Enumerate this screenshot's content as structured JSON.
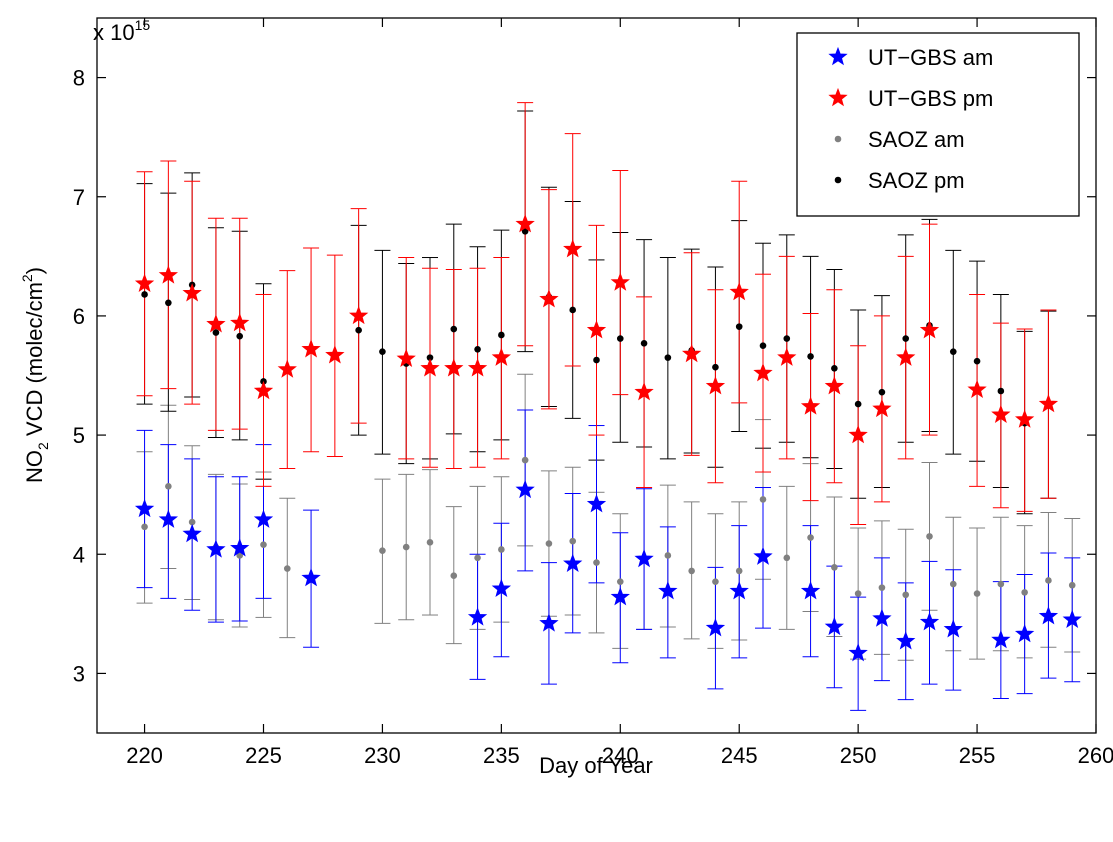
{
  "chart_data": {
    "type": "scatter",
    "xlabel": "Day of Year",
    "ylabel_main": "NO",
    "ylabel_sub": "2",
    "ylabel_rest": " VCD (molec/cm",
    "ylabel_sup": "2",
    "ylabel_end": ")",
    "exponent_prefix": "x 10",
    "exponent_power": "15",
    "scale": 1000000000000000.0,
    "xlim": [
      218,
      260
    ],
    "ylim": [
      2.5,
      8.5
    ],
    "xticks": [
      220,
      225,
      230,
      235,
      240,
      245,
      250,
      255,
      260
    ],
    "yticks": [
      3,
      4,
      5,
      6,
      7,
      8
    ],
    "grid": false,
    "legend_position": "top-right",
    "series": [
      {
        "name": "UT−GBS am",
        "marker": "star",
        "color": "#0000ff",
        "points": [
          {
            "x": 220,
            "y": 4.38,
            "lo": 3.72,
            "hi": 5.04
          },
          {
            "x": 221,
            "y": 4.29,
            "lo": 3.63,
            "hi": 4.92
          },
          {
            "x": 222,
            "y": 4.17,
            "lo": 3.53,
            "hi": 4.8
          },
          {
            "x": 223,
            "y": 4.04,
            "lo": 3.43,
            "hi": 4.65
          },
          {
            "x": 224,
            "y": 4.05,
            "lo": 3.44,
            "hi": 4.65
          },
          {
            "x": 225,
            "y": 4.29,
            "lo": 3.63,
            "hi": 4.92
          },
          {
            "x": 227,
            "y": 3.8,
            "lo": 3.22,
            "hi": 4.37
          },
          {
            "x": 234,
            "y": 3.47,
            "lo": 2.95,
            "hi": 4.0
          },
          {
            "x": 235,
            "y": 3.71,
            "lo": 3.14,
            "hi": 4.26
          },
          {
            "x": 236,
            "y": 4.54,
            "lo": 3.86,
            "hi": 5.21
          },
          {
            "x": 237,
            "y": 3.42,
            "lo": 2.91,
            "hi": 3.93
          },
          {
            "x": 238,
            "y": 3.92,
            "lo": 3.34,
            "hi": 4.51
          },
          {
            "x": 239,
            "y": 4.42,
            "lo": 3.76,
            "hi": 5.08
          },
          {
            "x": 240,
            "y": 3.64,
            "lo": 3.09,
            "hi": 4.18
          },
          {
            "x": 241,
            "y": 3.96,
            "lo": 3.37,
            "hi": 4.55
          },
          {
            "x": 242,
            "y": 3.69,
            "lo": 3.13,
            "hi": 4.23
          },
          {
            "x": 244,
            "y": 3.38,
            "lo": 2.87,
            "hi": 3.89
          },
          {
            "x": 245,
            "y": 3.69,
            "lo": 3.13,
            "hi": 4.24
          },
          {
            "x": 246,
            "y": 3.98,
            "lo": 3.38,
            "hi": 4.56
          },
          {
            "x": 248,
            "y": 3.69,
            "lo": 3.14,
            "hi": 4.24
          },
          {
            "x": 249,
            "y": 3.39,
            "lo": 2.88,
            "hi": 3.9
          },
          {
            "x": 250,
            "y": 3.17,
            "lo": 2.69,
            "hi": 3.64
          },
          {
            "x": 251,
            "y": 3.46,
            "lo": 2.94,
            "hi": 3.97
          },
          {
            "x": 252,
            "y": 3.27,
            "lo": 2.78,
            "hi": 3.76
          },
          {
            "x": 253,
            "y": 3.43,
            "lo": 2.91,
            "hi": 3.94
          },
          {
            "x": 254,
            "y": 3.37,
            "lo": 2.86,
            "hi": 3.87
          },
          {
            "x": 256,
            "y": 3.28,
            "lo": 2.79,
            "hi": 3.77
          },
          {
            "x": 257,
            "y": 3.33,
            "lo": 2.83,
            "hi": 3.83
          },
          {
            "x": 258,
            "y": 3.48,
            "lo": 2.96,
            "hi": 4.01
          },
          {
            "x": 259,
            "y": 3.45,
            "lo": 2.93,
            "hi": 3.97
          }
        ]
      },
      {
        "name": "UT−GBS pm",
        "marker": "star",
        "color": "#ff0000",
        "points": [
          {
            "x": 220,
            "y": 6.27,
            "lo": 5.33,
            "hi": 7.21
          },
          {
            "x": 221,
            "y": 6.34,
            "lo": 5.39,
            "hi": 7.3
          },
          {
            "x": 222,
            "y": 6.19,
            "lo": 5.26,
            "hi": 7.13
          },
          {
            "x": 223,
            "y": 5.93,
            "lo": 5.04,
            "hi": 6.82
          },
          {
            "x": 224,
            "y": 5.94,
            "lo": 5.05,
            "hi": 6.82
          },
          {
            "x": 225,
            "y": 5.37,
            "lo": 4.57,
            "hi": 6.18
          },
          {
            "x": 226,
            "y": 5.55,
            "lo": 4.72,
            "hi": 6.38
          },
          {
            "x": 227,
            "y": 5.72,
            "lo": 4.86,
            "hi": 6.57
          },
          {
            "x": 228,
            "y": 5.67,
            "lo": 4.82,
            "hi": 6.51
          },
          {
            "x": 229,
            "y": 6.0,
            "lo": 5.1,
            "hi": 6.9
          },
          {
            "x": 231,
            "y": 5.64,
            "lo": 4.8,
            "hi": 6.49
          },
          {
            "x": 232,
            "y": 5.56,
            "lo": 4.73,
            "hi": 6.4
          },
          {
            "x": 233,
            "y": 5.56,
            "lo": 4.72,
            "hi": 6.39
          },
          {
            "x": 234,
            "y": 5.56,
            "lo": 4.73,
            "hi": 6.4
          },
          {
            "x": 235,
            "y": 5.65,
            "lo": 4.8,
            "hi": 6.49
          },
          {
            "x": 236,
            "y": 6.77,
            "lo": 5.75,
            "hi": 7.79
          },
          {
            "x": 237,
            "y": 6.14,
            "lo": 5.22,
            "hi": 7.06
          },
          {
            "x": 238,
            "y": 6.56,
            "lo": 5.58,
            "hi": 7.53
          },
          {
            "x": 239,
            "y": 5.88,
            "lo": 5.0,
            "hi": 6.76
          },
          {
            "x": 240,
            "y": 6.28,
            "lo": 5.34,
            "hi": 7.22
          },
          {
            "x": 241,
            "y": 5.36,
            "lo": 4.56,
            "hi": 6.16
          },
          {
            "x": 243,
            "y": 5.68,
            "lo": 4.83,
            "hi": 6.53
          },
          {
            "x": 244,
            "y": 5.41,
            "lo": 4.6,
            "hi": 6.22
          },
          {
            "x": 245,
            "y": 6.2,
            "lo": 5.27,
            "hi": 7.13
          },
          {
            "x": 246,
            "y": 5.52,
            "lo": 4.69,
            "hi": 6.35
          },
          {
            "x": 247,
            "y": 5.65,
            "lo": 4.8,
            "hi": 6.5
          },
          {
            "x": 248,
            "y": 5.24,
            "lo": 4.45,
            "hi": 6.02
          },
          {
            "x": 249,
            "y": 5.41,
            "lo": 4.6,
            "hi": 6.22
          },
          {
            "x": 250,
            "y": 5.0,
            "lo": 4.25,
            "hi": 5.75
          },
          {
            "x": 251,
            "y": 5.22,
            "lo": 4.44,
            "hi": 6.0
          },
          {
            "x": 252,
            "y": 5.65,
            "lo": 4.8,
            "hi": 6.5
          },
          {
            "x": 253,
            "y": 5.88,
            "lo": 5.0,
            "hi": 6.77
          },
          {
            "x": 255,
            "y": 5.38,
            "lo": 4.57,
            "hi": 6.18
          },
          {
            "x": 256,
            "y": 5.17,
            "lo": 4.39,
            "hi": 5.94
          },
          {
            "x": 257,
            "y": 5.13,
            "lo": 4.36,
            "hi": 5.89
          },
          {
            "x": 258,
            "y": 5.26,
            "lo": 4.47,
            "hi": 6.05
          }
        ]
      },
      {
        "name": "SAOZ am",
        "marker": "dot",
        "color": "#808080",
        "points": [
          {
            "x": 220,
            "y": 4.23,
            "lo": 3.59,
            "hi": 4.86
          },
          {
            "x": 221,
            "y": 4.57,
            "lo": 3.88,
            "hi": 5.25
          },
          {
            "x": 222,
            "y": 4.27,
            "lo": 3.62,
            "hi": 4.91
          },
          {
            "x": 223,
            "y": 4.06,
            "lo": 3.45,
            "hi": 4.67
          },
          {
            "x": 224,
            "y": 3.99,
            "lo": 3.39,
            "hi": 4.59
          },
          {
            "x": 225,
            "y": 4.08,
            "lo": 3.47,
            "hi": 4.69
          },
          {
            "x": 226,
            "y": 3.88,
            "lo": 3.3,
            "hi": 4.47
          },
          {
            "x": 230,
            "y": 4.03,
            "lo": 3.42,
            "hi": 4.63
          },
          {
            "x": 231,
            "y": 4.06,
            "lo": 3.45,
            "hi": 4.67
          },
          {
            "x": 232,
            "y": 4.1,
            "lo": 3.49,
            "hi": 4.71
          },
          {
            "x": 233,
            "y": 3.82,
            "lo": 3.25,
            "hi": 4.4
          },
          {
            "x": 234,
            "y": 3.97,
            "lo": 3.37,
            "hi": 4.57
          },
          {
            "x": 235,
            "y": 4.04,
            "lo": 3.43,
            "hi": 4.65
          },
          {
            "x": 236,
            "y": 4.79,
            "lo": 4.07,
            "hi": 5.51
          },
          {
            "x": 237,
            "y": 4.09,
            "lo": 3.48,
            "hi": 4.7
          },
          {
            "x": 238,
            "y": 4.11,
            "lo": 3.49,
            "hi": 4.73
          },
          {
            "x": 239,
            "y": 3.93,
            "lo": 3.34,
            "hi": 4.52
          },
          {
            "x": 240,
            "y": 3.77,
            "lo": 3.21,
            "hi": 4.34
          },
          {
            "x": 241,
            "y": 3.97,
            "lo": 3.37,
            "hi": 4.56
          },
          {
            "x": 242,
            "y": 3.99,
            "lo": 3.39,
            "hi": 4.58
          },
          {
            "x": 243,
            "y": 3.86,
            "lo": 3.29,
            "hi": 4.44
          },
          {
            "x": 244,
            "y": 3.77,
            "lo": 3.21,
            "hi": 4.34
          },
          {
            "x": 245,
            "y": 3.86,
            "lo": 3.28,
            "hi": 4.44
          },
          {
            "x": 246,
            "y": 4.46,
            "lo": 3.79,
            "hi": 5.13
          },
          {
            "x": 247,
            "y": 3.97,
            "lo": 3.37,
            "hi": 4.57
          },
          {
            "x": 248,
            "y": 4.14,
            "lo": 3.52,
            "hi": 4.76
          },
          {
            "x": 249,
            "y": 3.89,
            "lo": 3.31,
            "hi": 4.48
          },
          {
            "x": 250,
            "y": 3.67,
            "lo": 3.12,
            "hi": 4.22
          },
          {
            "x": 251,
            "y": 3.72,
            "lo": 3.16,
            "hi": 4.28
          },
          {
            "x": 252,
            "y": 3.66,
            "lo": 3.11,
            "hi": 4.21
          },
          {
            "x": 253,
            "y": 4.15,
            "lo": 3.53,
            "hi": 4.77
          },
          {
            "x": 254,
            "y": 3.75,
            "lo": 3.19,
            "hi": 4.31
          },
          {
            "x": 255,
            "y": 3.67,
            "lo": 3.12,
            "hi": 4.22
          },
          {
            "x": 256,
            "y": 3.75,
            "lo": 3.19,
            "hi": 4.31
          },
          {
            "x": 257,
            "y": 3.68,
            "lo": 3.13,
            "hi": 4.24
          },
          {
            "x": 258,
            "y": 3.78,
            "lo": 3.22,
            "hi": 4.35
          },
          {
            "x": 259,
            "y": 3.74,
            "lo": 3.18,
            "hi": 4.3
          }
        ]
      },
      {
        "name": "SAOZ pm",
        "marker": "dot",
        "color": "#000000",
        "points": [
          {
            "x": 220,
            "y": 6.18,
            "lo": 5.26,
            "hi": 7.11
          },
          {
            "x": 221,
            "y": 6.11,
            "lo": 5.2,
            "hi": 7.03
          },
          {
            "x": 222,
            "y": 6.26,
            "lo": 5.32,
            "hi": 7.2
          },
          {
            "x": 223,
            "y": 5.86,
            "lo": 4.98,
            "hi": 6.74
          },
          {
            "x": 224,
            "y": 5.83,
            "lo": 4.96,
            "hi": 6.71
          },
          {
            "x": 225,
            "y": 5.45,
            "lo": 4.63,
            "hi": 6.27
          },
          {
            "x": 229,
            "y": 5.88,
            "lo": 5.0,
            "hi": 6.76
          },
          {
            "x": 230,
            "y": 5.7,
            "lo": 4.84,
            "hi": 6.55
          },
          {
            "x": 231,
            "y": 5.6,
            "lo": 4.76,
            "hi": 6.44
          },
          {
            "x": 232,
            "y": 5.65,
            "lo": 4.8,
            "hi": 6.49
          },
          {
            "x": 233,
            "y": 5.89,
            "lo": 5.01,
            "hi": 6.77
          },
          {
            "x": 234,
            "y": 5.72,
            "lo": 4.86,
            "hi": 6.58
          },
          {
            "x": 235,
            "y": 5.84,
            "lo": 4.96,
            "hi": 6.72
          },
          {
            "x": 236,
            "y": 6.71,
            "lo": 5.7,
            "hi": 7.72
          },
          {
            "x": 237,
            "y": 6.16,
            "lo": 5.24,
            "hi": 7.08
          },
          {
            "x": 238,
            "y": 6.05,
            "lo": 5.14,
            "hi": 6.96
          },
          {
            "x": 239,
            "y": 5.63,
            "lo": 4.79,
            "hi": 6.47
          },
          {
            "x": 240,
            "y": 5.81,
            "lo": 4.94,
            "hi": 6.7
          },
          {
            "x": 241,
            "y": 5.77,
            "lo": 4.9,
            "hi": 6.64
          },
          {
            "x": 242,
            "y": 5.65,
            "lo": 4.8,
            "hi": 6.49
          },
          {
            "x": 243,
            "y": 5.71,
            "lo": 4.85,
            "hi": 6.56
          },
          {
            "x": 244,
            "y": 5.57,
            "lo": 4.73,
            "hi": 6.41
          },
          {
            "x": 245,
            "y": 5.91,
            "lo": 5.03,
            "hi": 6.8
          },
          {
            "x": 246,
            "y": 5.75,
            "lo": 4.89,
            "hi": 6.61
          },
          {
            "x": 247,
            "y": 5.81,
            "lo": 4.94,
            "hi": 6.68
          },
          {
            "x": 248,
            "y": 5.66,
            "lo": 4.81,
            "hi": 6.5
          },
          {
            "x": 249,
            "y": 5.56,
            "lo": 4.72,
            "hi": 6.39
          },
          {
            "x": 250,
            "y": 5.26,
            "lo": 4.47,
            "hi": 6.05
          },
          {
            "x": 251,
            "y": 5.36,
            "lo": 4.56,
            "hi": 6.17
          },
          {
            "x": 252,
            "y": 5.81,
            "lo": 4.94,
            "hi": 6.68
          },
          {
            "x": 253,
            "y": 5.92,
            "lo": 5.03,
            "hi": 6.81
          },
          {
            "x": 254,
            "y": 5.7,
            "lo": 4.84,
            "hi": 6.55
          },
          {
            "x": 255,
            "y": 5.62,
            "lo": 4.78,
            "hi": 6.46
          },
          {
            "x": 256,
            "y": 5.37,
            "lo": 4.56,
            "hi": 6.18
          },
          {
            "x": 257,
            "y": 5.1,
            "lo": 4.34,
            "hi": 5.87
          },
          {
            "x": 258,
            "y": 5.25,
            "lo": 4.47,
            "hi": 6.04
          }
        ]
      }
    ]
  }
}
